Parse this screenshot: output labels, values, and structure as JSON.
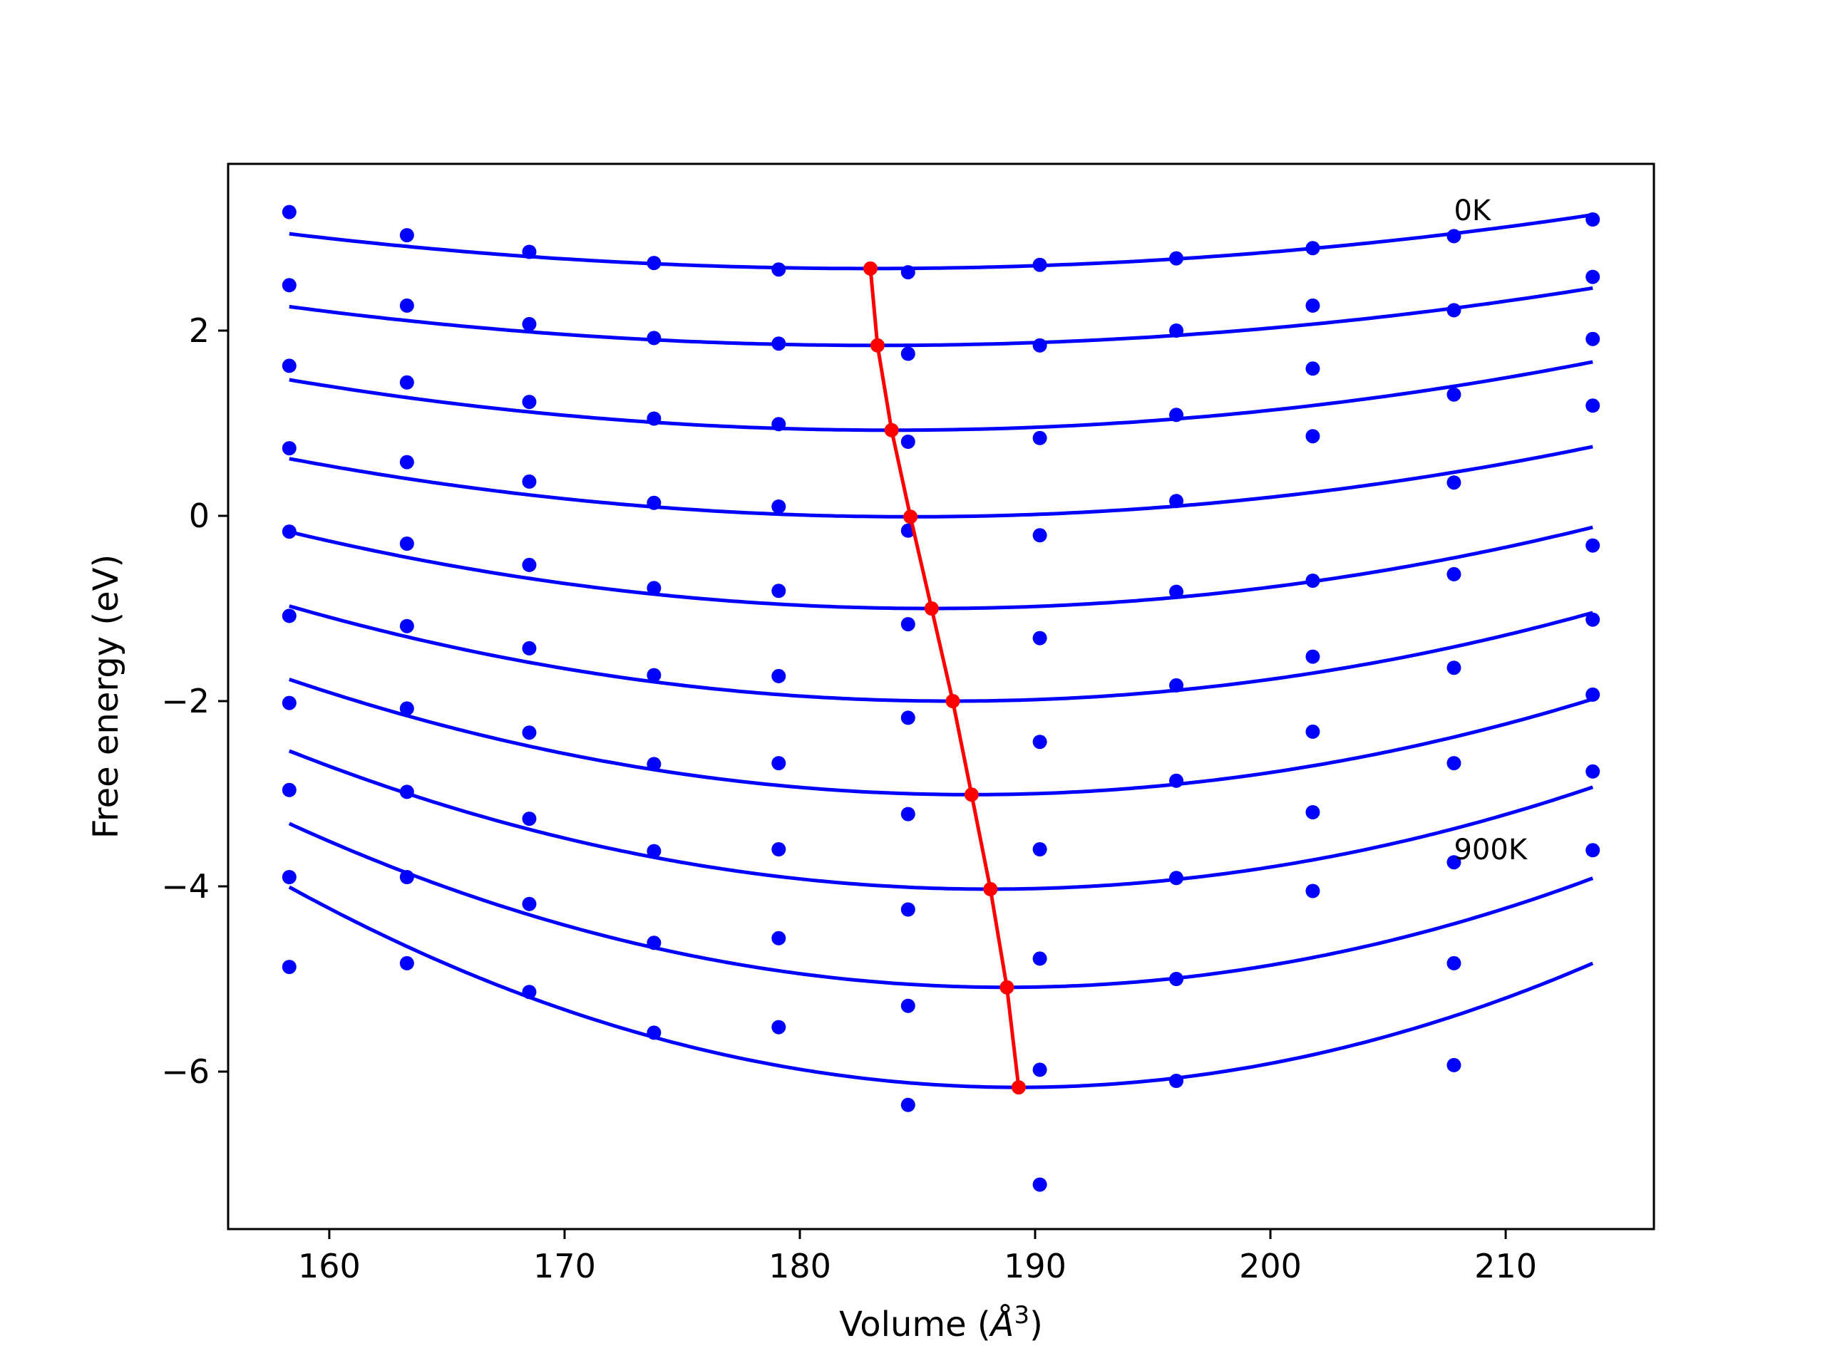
{
  "chart_data": {
    "type": "scatter",
    "xlabel": "Volume",
    "xlabel_unit_base": "Å",
    "xlabel_unit_exp": "3",
    "ylabel": "Free energy (eV)",
    "xlim": [
      155.7,
      216.3
    ],
    "ylim": [
      -7.7,
      3.8
    ],
    "xticks": [
      160,
      170,
      180,
      190,
      200,
      210
    ],
    "yticks": [
      2,
      0,
      -2,
      -4,
      -6
    ],
    "ytick_labels": [
      "2",
      "0",
      "−2",
      "−4",
      "−6"
    ],
    "grid": false,
    "annotations": [
      {
        "text": "0K",
        "x": 207.8,
        "y": 3.3
      },
      {
        "text": "900K",
        "x": 207.8,
        "y": -3.6
      }
    ],
    "volumes": [
      158.3,
      163.3,
      168.5,
      173.8,
      179.1,
      184.6,
      190.2,
      196.0,
      201.8,
      207.8,
      213.7
    ],
    "series": [
      {
        "points": [
          3.28,
          3.03,
          2.85,
          2.73,
          2.66,
          2.63,
          2.71,
          2.78,
          2.89,
          3.02,
          3.2
        ],
        "fit": {
          "v0": 183.0,
          "e0": 2.67,
          "a": 0.000615
        }
      },
      {
        "points": [
          2.49,
          2.27,
          2.07,
          1.92,
          1.86,
          1.75,
          1.84,
          2.0,
          2.27,
          2.22,
          2.58
        ],
        "fit": {
          "v0": 183.3,
          "e0": 1.84,
          "a": 0.00067
        }
      },
      {
        "points": [
          1.62,
          1.44,
          1.23,
          1.05,
          0.99,
          0.8,
          0.84,
          1.09,
          1.59,
          1.31,
          1.91
        ],
        "fit": {
          "v0": 183.9,
          "e0": 0.925,
          "a": 0.00083
        }
      },
      {
        "points": [
          0.73,
          0.58,
          0.37,
          0.14,
          0.1,
          -0.16,
          -0.21,
          0.16,
          0.86,
          0.36,
          1.19
        ],
        "fit": {
          "v0": 184.7,
          "e0": -0.01,
          "a": 0.0009
        }
      },
      {
        "points": [
          -0.17,
          -0.3,
          -0.53,
          -0.78,
          -0.81,
          -1.17,
          -1.32,
          -0.82,
          -0.7,
          -0.63,
          -0.32
        ],
        "fit": {
          "v0": 185.6,
          "e0": -1.0,
          "a": 0.00111
        }
      },
      {
        "points": [
          -1.08,
          -1.19,
          -1.43,
          -1.72,
          -1.73,
          -2.18,
          -2.44,
          -1.83,
          -1.52,
          -1.64,
          -1.12
        ],
        "fit": {
          "v0": 186.5,
          "e0": -2.0,
          "a": 0.00129
        }
      },
      {
        "points": [
          -2.02,
          -2.08,
          -2.34,
          -2.68,
          -2.67,
          -3.22,
          -3.6,
          -2.86,
          -2.33,
          -2.67,
          -1.93
        ],
        "fit": {
          "v0": 187.3,
          "e0": -3.01,
          "a": 0.00148
        }
      },
      {
        "points": [
          -2.96,
          -2.98,
          -3.27,
          -3.62,
          -3.6,
          -4.25,
          -4.78,
          -3.91,
          -3.2,
          -3.74,
          -2.76
        ],
        "fit": {
          "v0": 188.1,
          "e0": -4.03,
          "a": 0.00168
        }
      },
      {
        "points": [
          -3.9,
          -3.9,
          -4.19,
          -4.61,
          -4.56,
          -5.29,
          -5.98,
          -5.0,
          -4.05,
          -4.83,
          -3.61
        ],
        "fit": {
          "v0": 188.8,
          "e0": -5.09,
          "a": 0.0019
        }
      },
      {
        "points": [
          -4.87,
          -4.83,
          -5.14,
          -5.58,
          -5.52,
          -6.36,
          -7.22,
          -6.1,
          null,
          -5.93,
          null
        ],
        "fit": {
          "v0": 189.3,
          "e0": -6.17,
          "a": 0.00225
        }
      }
    ],
    "minima_line": {
      "x": [
        183.0,
        183.3,
        183.9,
        184.7,
        185.6,
        186.5,
        187.3,
        188.1,
        188.8,
        189.3
      ],
      "y": [
        2.67,
        1.84,
        0.925,
        -0.01,
        -1.0,
        -2.0,
        -3.01,
        -4.03,
        -5.09,
        -6.17
      ]
    },
    "colors": {
      "points": "#0000ff",
      "fit": "#0000ff",
      "minima": "#ff0000",
      "axes": "#000000"
    }
  }
}
